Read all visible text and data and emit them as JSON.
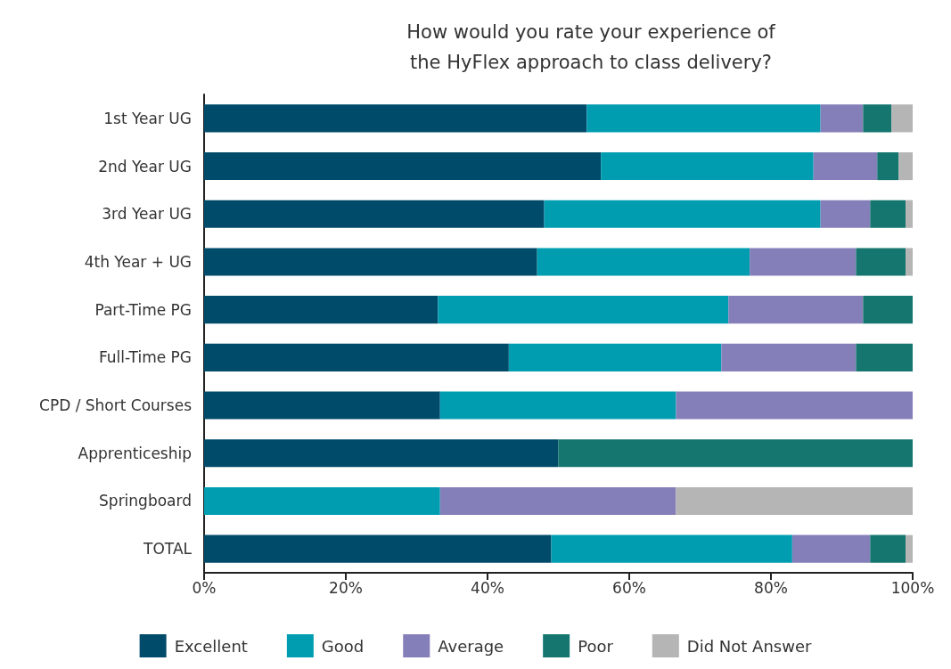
{
  "chart_data": {
    "type": "bar",
    "orientation": "horizontal",
    "stacked": true,
    "title": "How would you rate your experience of\nthe HyFlex approach to class delivery?",
    "categories": [
      "1st Year UG",
      "2nd Year UG",
      "3rd Year UG",
      "4th Year + UG",
      "Part-Time PG",
      "Full-Time PG",
      "CPD / Short Courses",
      "Apprenticeship",
      "Springboard",
      "TOTAL"
    ],
    "series": [
      {
        "name": "Excellent",
        "color": "#004a6a",
        "values": [
          54,
          56,
          48,
          47,
          33,
          43,
          33.3,
          50,
          0,
          49
        ]
      },
      {
        "name": "Good",
        "color": "#009db1",
        "values": [
          33,
          30,
          39,
          30,
          41,
          30,
          33.3,
          0,
          33.3,
          34
        ]
      },
      {
        "name": "Average",
        "color": "#857fb9",
        "values": [
          6,
          9,
          7,
          15,
          19,
          19,
          33.4,
          0,
          33.3,
          11
        ]
      },
      {
        "name": "Poor",
        "color": "#15766f",
        "values": [
          4,
          3,
          5,
          7,
          7,
          8,
          0,
          50,
          0,
          5
        ]
      },
      {
        "name": "Did Not Answer",
        "color": "#b5b5b5",
        "values": [
          3,
          2,
          1,
          1,
          0,
          0,
          0,
          0,
          33.4,
          1
        ]
      }
    ],
    "xlim": [
      0,
      100
    ],
    "xticks": [
      {
        "value": 0,
        "label": "0%"
      },
      {
        "value": 20,
        "label": "20%"
      },
      {
        "value": 40,
        "label": "40%"
      },
      {
        "value": 60,
        "label": "60%"
      },
      {
        "value": 80,
        "label": "80%"
      },
      {
        "value": 100,
        "label": "100%"
      }
    ],
    "grid": false,
    "legend": "bottom"
  }
}
